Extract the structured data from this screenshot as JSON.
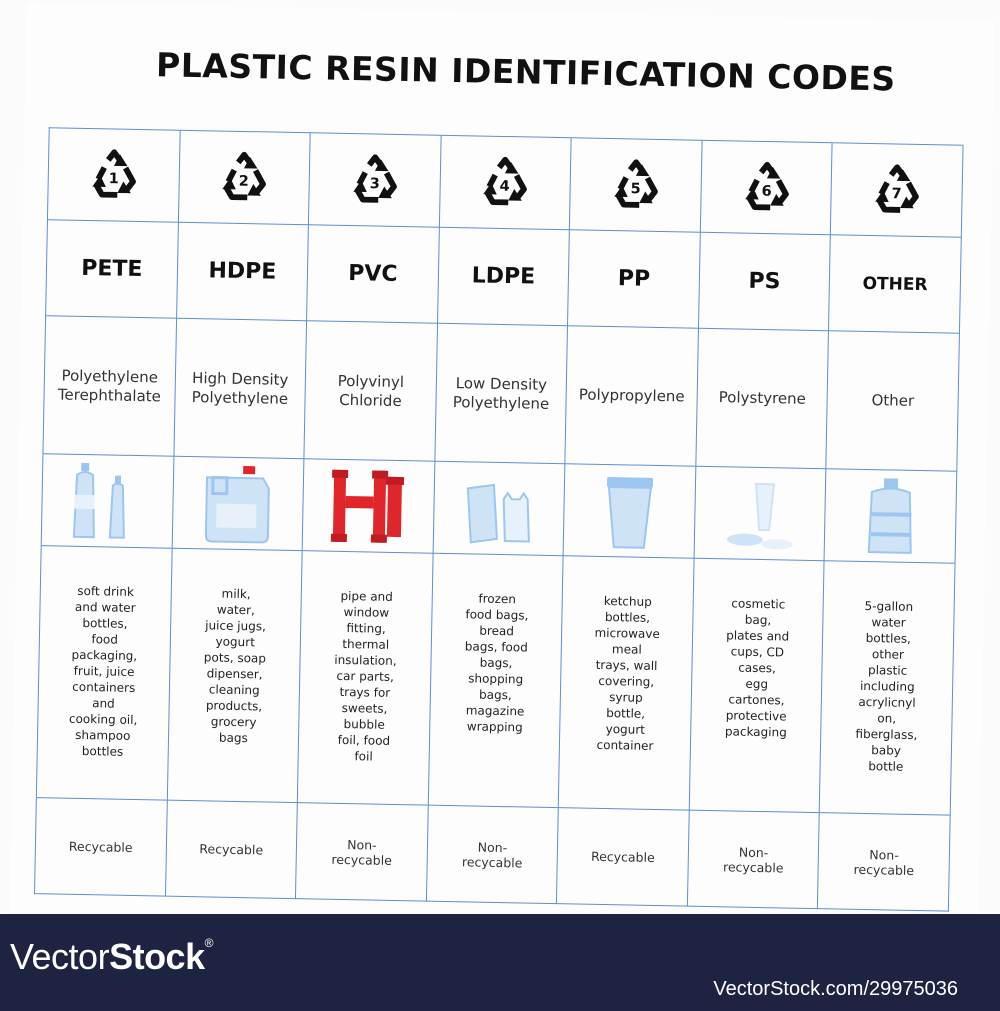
{
  "title": "PLASTIC RESIN IDENTIFICATION CODES",
  "colors": {
    "grid_line": "#5b8fd6",
    "plastic_light": "#cfe3f7",
    "plastic_mid": "#9cc6ef",
    "pvc_red": "#e0262b",
    "footer_bg": "#1d2340"
  },
  "codes": [
    {
      "number": "1",
      "abbr": "PETE",
      "name_line1": "Polyethylene",
      "name_line2": "Terephthalate",
      "image_icon": "water-bottles-icon",
      "uses": [
        "soft drink",
        "and water",
        "bottles,",
        "food",
        "packaging,",
        "fruit, juice",
        "containers",
        "and",
        "cooking oil,",
        "shampoo",
        "bottles"
      ],
      "status_line1": "Recycable",
      "status_line2": ""
    },
    {
      "number": "2",
      "abbr": "HDPE",
      "name_line1": "High Density",
      "name_line2": "Polyethylene",
      "image_icon": "detergent-jug-icon",
      "uses": [
        "milk,",
        "water,",
        "juice jugs,",
        "yogurt",
        "pots, soap",
        "dipenser,",
        "cleaning",
        "products,",
        "grocery",
        "bags"
      ],
      "status_line1": "Recycable",
      "status_line2": ""
    },
    {
      "number": "3",
      "abbr": "PVC",
      "name_line1": "Polyvinyl",
      "name_line2": "Chloride",
      "image_icon": "pipe-fittings-icon",
      "uses": [
        "pipe and",
        "window",
        "fitting,",
        "thermal",
        "insulation,",
        "car parts,",
        "trays for",
        "sweets,",
        "bubble",
        "foil, food",
        "foil"
      ],
      "status_line1": "Non-",
      "status_line2": "recycable"
    },
    {
      "number": "4",
      "abbr": "LDPE",
      "name_line1": "Low Density",
      "name_line2": "Polyethylene",
      "image_icon": "plastic-bags-icon",
      "uses": [
        "frozen",
        "food bags,",
        "bread",
        "bags, food",
        "bags,",
        "shopping",
        "bags,",
        "magazine",
        "wrapping"
      ],
      "status_line1": "Non-",
      "status_line2": "recycable"
    },
    {
      "number": "5",
      "abbr": "PP",
      "name_line1": "Polypropylene",
      "name_line2": "",
      "image_icon": "cup-container-icon",
      "uses": [
        "ketchup",
        "bottles,",
        "microwave",
        "meal",
        "trays, wall",
        "covering,",
        "syrup",
        "bottle,",
        "yogurt",
        "container"
      ],
      "status_line1": "Recycable",
      "status_line2": ""
    },
    {
      "number": "6",
      "abbr": "PS",
      "name_line1": "Polystyrene",
      "name_line2": "",
      "image_icon": "cups-plates-icon",
      "uses": [
        "cosmetic",
        "bag,",
        "plates and",
        "cups, CD",
        "cases,",
        "egg",
        "cartones,",
        "protective",
        "packaging"
      ],
      "status_line1": "Non-",
      "status_line2": "recycable"
    },
    {
      "number": "7",
      "abbr": "OTHER",
      "name_line1": "Other",
      "name_line2": "",
      "image_icon": "water-jug-icon",
      "uses": [
        "5-gallon",
        "water",
        "bottles,",
        "other",
        "plastic",
        "including",
        "acrylicnyl",
        "on,",
        "fiberglass,",
        "baby",
        "bottle"
      ],
      "status_line1": "Non-",
      "status_line2": "recycable"
    }
  ],
  "footer": {
    "brand_prefix": "Vector",
    "brand_suffix": "Stock",
    "brand_mark": "®",
    "url": "VectorStock.com/29975036"
  }
}
